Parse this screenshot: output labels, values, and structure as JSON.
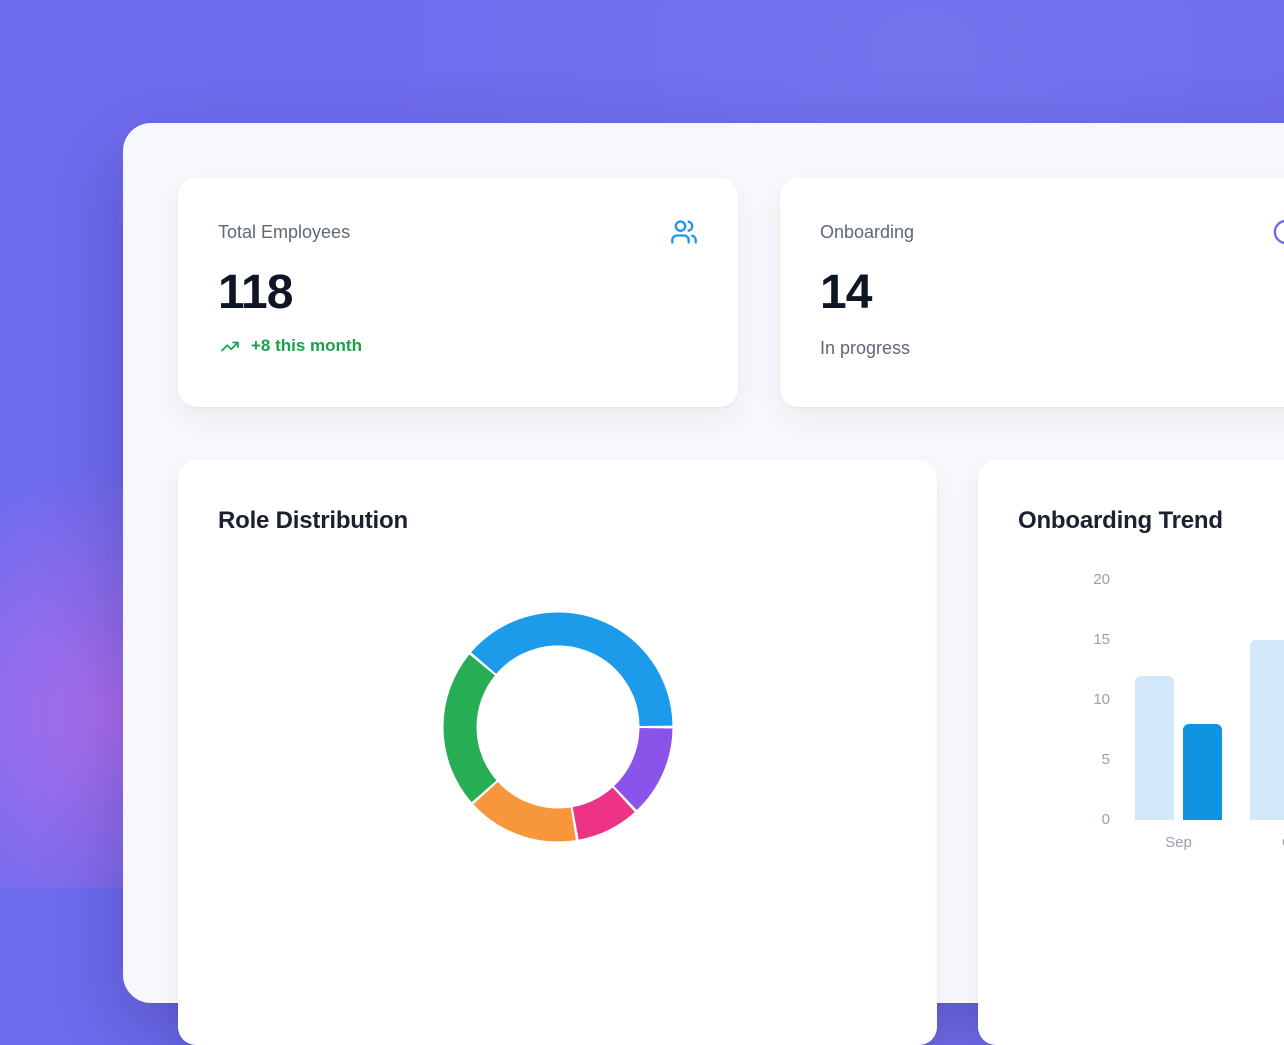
{
  "page": {
    "background_color": "#6f6cee",
    "glow_color": "#e170eb",
    "panel_color": "#f7f8fb",
    "card_color": "#ffffff"
  },
  "stat_cards": [
    {
      "label": "Total Employees",
      "value": "118",
      "trend": {
        "text": "+8 this month",
        "direction": "up",
        "color": "#16a34a"
      },
      "icon": "users-icon",
      "icon_color": "#1e96e9"
    },
    {
      "label": "Onboarding",
      "value": "14",
      "subtitle": "In progress",
      "icon": "clock-icon",
      "icon_color": "#6b68f0"
    }
  ],
  "chart_data": [
    {
      "type": "pie",
      "donut": true,
      "title": "Role Distribution",
      "legend": false,
      "start_angle_deg": -50,
      "segments": [
        {
          "color": "#1b9be9",
          "percent": 38.9
        },
        {
          "color": "#8a53ea",
          "percent": 13.1
        },
        {
          "color": "#ee3287",
          "percent": 9.2
        },
        {
          "color": "#f8963c",
          "percent": 16.1
        },
        {
          "color": "#27ae54",
          "percent": 22.7
        }
      ]
    },
    {
      "type": "bar",
      "title": "Onboarding Trend",
      "categories": [
        "Sep",
        "Oct"
      ],
      "series": [
        {
          "name": "series-1",
          "color": "#d2e8f8",
          "values": [
            12,
            15
          ]
        },
        {
          "name": "series-2",
          "color": "#1094e2",
          "values": [
            8,
            null
          ]
        }
      ],
      "yticks": [
        0,
        5,
        10,
        15,
        20
      ],
      "ylim": [
        0,
        20
      ],
      "grid": false,
      "legend": false,
      "tick_color": "#95a1ae"
    }
  ]
}
